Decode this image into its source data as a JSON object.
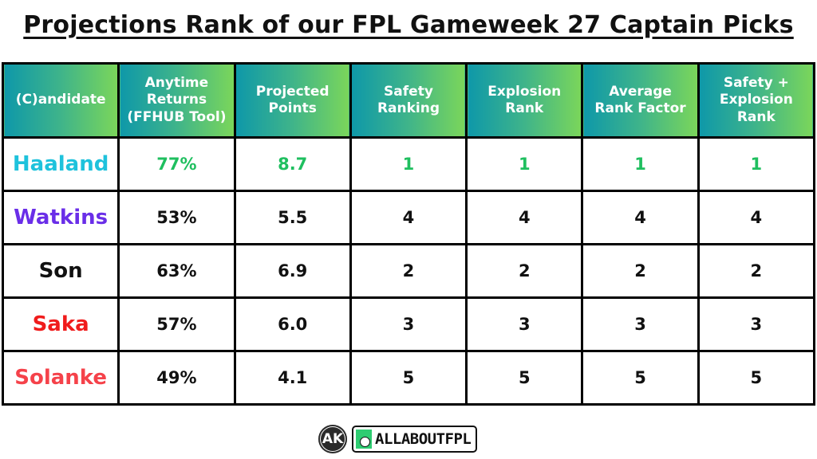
{
  "title": "Projections Rank of our FPL Gameweek 27 Captain Picks",
  "table": {
    "headers": [
      "(C)andidate",
      "Anytime Returns (FFHUB Tool)",
      "Projected Points",
      "Safety Ranking",
      "Explosion Rank",
      "Average Rank Factor",
      "Safety + Explosion Rank"
    ],
    "header_lines": [
      [
        "(C)andidate"
      ],
      [
        "Anytime",
        "Returns",
        "(FFHUB Tool)"
      ],
      [
        "Projected",
        "Points"
      ],
      [
        "Safety",
        "Ranking"
      ],
      [
        "Explosion",
        "Rank"
      ],
      [
        "Average",
        "Rank Factor"
      ],
      [
        "Safety +",
        "Explosion",
        "Rank"
      ]
    ],
    "rows": [
      {
        "name": "Haaland",
        "name_color": "#1ec2dc",
        "value_color": "#1fbf5f",
        "anytime_returns": "77%",
        "projected_points": "8.7",
        "safety_ranking": "1",
        "explosion_rank": "1",
        "average_rank_factor": "1",
        "safety_explosion_rank": "1"
      },
      {
        "name": "Watkins",
        "name_color": "#6a2ee8",
        "value_color": "#111111",
        "anytime_returns": "53%",
        "projected_points": "5.5",
        "safety_ranking": "4",
        "explosion_rank": "4",
        "average_rank_factor": "4",
        "safety_explosion_rank": "4"
      },
      {
        "name": "Son",
        "name_color": "#111111",
        "value_color": "#111111",
        "anytime_returns": "63%",
        "projected_points": "6.9",
        "safety_ranking": "2",
        "explosion_rank": "2",
        "average_rank_factor": "2",
        "safety_explosion_rank": "2"
      },
      {
        "name": "Saka",
        "name_color": "#f01c1c",
        "value_color": "#111111",
        "anytime_returns": "57%",
        "projected_points": "6.0",
        "safety_ranking": "3",
        "explosion_rank": "3",
        "average_rank_factor": "3",
        "safety_explosion_rank": "3"
      },
      {
        "name": "Solanke",
        "name_color": "#f5424a",
        "value_color": "#111111",
        "anytime_returns": "49%",
        "projected_points": "4.1",
        "safety_ranking": "5",
        "explosion_rank": "5",
        "average_rank_factor": "5",
        "safety_explosion_rank": "5"
      }
    ]
  },
  "colors": {
    "header_gradient_start": "#0e98a9",
    "header_gradient_end": "#7bd65a",
    "border": "#000000"
  },
  "footer": {
    "ak_logo": "AK",
    "brand": "ALLABOUTFPL"
  },
  "chart_data": {
    "type": "table",
    "title": "Projections Rank of our FPL Gameweek 27 Captain Picks",
    "columns": [
      "(C)andidate",
      "Anytime Returns (FFHUB Tool)",
      "Projected Points",
      "Safety Ranking",
      "Explosion Rank",
      "Average Rank Factor",
      "Safety + Explosion Rank"
    ],
    "rows": [
      [
        "Haaland",
        "77%",
        8.7,
        1,
        1,
        1,
        1
      ],
      [
        "Watkins",
        "53%",
        5.5,
        4,
        4,
        4,
        4
      ],
      [
        "Son",
        "63%",
        6.9,
        2,
        2,
        2,
        2
      ],
      [
        "Saka",
        "57%",
        6.0,
        3,
        3,
        3,
        3
      ],
      [
        "Solanke",
        "49%",
        4.1,
        5,
        5,
        5,
        5
      ]
    ]
  }
}
